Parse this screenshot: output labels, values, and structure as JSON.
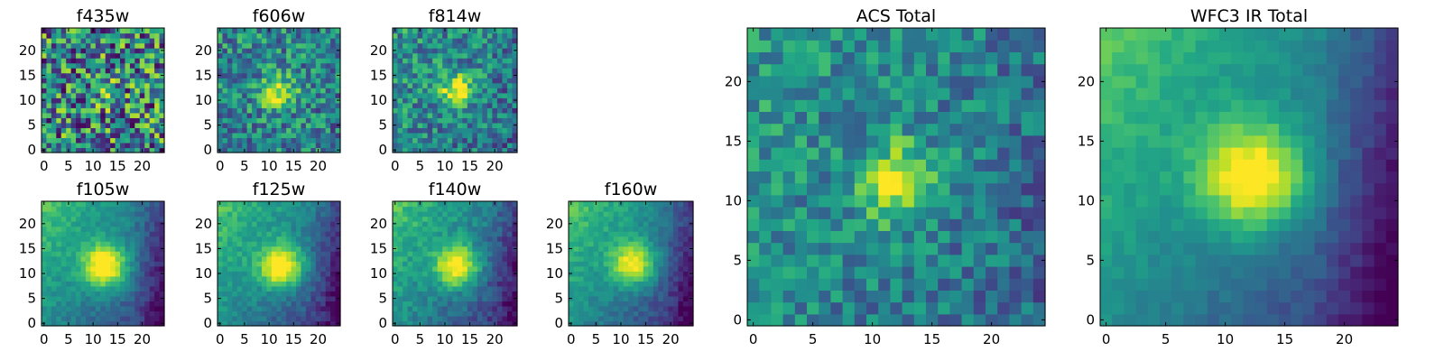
{
  "chart_data": [
    {
      "type": "heatmap",
      "title": "f435w",
      "xticks": [
        0,
        5,
        10,
        15,
        20
      ],
      "yticks": [
        0,
        5,
        10,
        15,
        20
      ],
      "xlim": [
        -0.5,
        24.5
      ],
      "ylim": [
        -0.5,
        24.5
      ],
      "grid": false,
      "colormap": "viridis",
      "source": {
        "center": [
          12,
          12
        ],
        "amplitude": 0.1,
        "sigma": 3
      },
      "background_gradient": 0.0,
      "noise": 0.9
    },
    {
      "type": "heatmap",
      "title": "f606w",
      "xticks": [
        0,
        5,
        10,
        15,
        20
      ],
      "yticks": [
        0,
        5,
        10,
        15,
        20
      ],
      "xlim": [
        -0.5,
        24.5
      ],
      "ylim": [
        -0.5,
        24.5
      ],
      "grid": false,
      "colormap": "viridis",
      "source": {
        "center": [
          12,
          11.5
        ],
        "amplitude": 0.55,
        "sigma": 2.3
      },
      "background_gradient": 0.05,
      "noise": 0.55
    },
    {
      "type": "heatmap",
      "title": "f814w",
      "xticks": [
        0,
        5,
        10,
        15,
        20
      ],
      "yticks": [
        0,
        5,
        10,
        15,
        20
      ],
      "xlim": [
        -0.5,
        24.5
      ],
      "ylim": [
        -0.5,
        24.5
      ],
      "grid": false,
      "colormap": "viridis",
      "source": {
        "center": [
          12.5,
          12
        ],
        "amplitude": 0.6,
        "sigma": 2.3
      },
      "background_gradient": 0.15,
      "noise": 0.5
    },
    {
      "type": "heatmap",
      "title": "f105w",
      "xticks": [
        0,
        5,
        10,
        15,
        20
      ],
      "yticks": [
        0,
        5,
        10,
        15,
        20
      ],
      "xlim": [
        -0.5,
        24.5
      ],
      "ylim": [
        -0.5,
        24.5
      ],
      "grid": false,
      "colormap": "viridis",
      "source": {
        "center": [
          12.5,
          11.5
        ],
        "amplitude": 0.7,
        "sigma": 3.2
      },
      "background_gradient": 0.65,
      "noise": 0.15
    },
    {
      "type": "heatmap",
      "title": "f125w",
      "xticks": [
        0,
        5,
        10,
        15,
        20
      ],
      "yticks": [
        0,
        5,
        10,
        15,
        20
      ],
      "xlim": [
        -0.5,
        24.5
      ],
      "ylim": [
        -0.5,
        24.5
      ],
      "grid": false,
      "colormap": "viridis",
      "source": {
        "center": [
          12.5,
          11.5
        ],
        "amplitude": 0.7,
        "sigma": 3.1
      },
      "background_gradient": 0.65,
      "noise": 0.17
    },
    {
      "type": "heatmap",
      "title": "f140w",
      "xticks": [
        0,
        5,
        10,
        15,
        20
      ],
      "yticks": [
        0,
        5,
        10,
        15,
        20
      ],
      "xlim": [
        -0.5,
        24.5
      ],
      "ylim": [
        -0.5,
        24.5
      ],
      "grid": false,
      "colormap": "viridis",
      "source": {
        "center": [
          12.5,
          11.5
        ],
        "amplitude": 0.65,
        "sigma": 3.0
      },
      "background_gradient": 0.65,
      "noise": 0.2
    },
    {
      "type": "heatmap",
      "title": "f160w",
      "xticks": [
        0,
        5,
        10,
        15,
        20
      ],
      "yticks": [
        0,
        5,
        10,
        15,
        20
      ],
      "xlim": [
        -0.5,
        24.5
      ],
      "ylim": [
        -0.5,
        24.5
      ],
      "grid": false,
      "colormap": "viridis",
      "source": {
        "center": [
          12.5,
          12
        ],
        "amplitude": 0.6,
        "sigma": 3.0
      },
      "background_gradient": 0.7,
      "noise": 0.15
    },
    {
      "type": "heatmap",
      "title": "ACS Total",
      "xticks": [
        0,
        5,
        10,
        15,
        20
      ],
      "yticks": [
        0,
        5,
        10,
        15,
        20
      ],
      "xlim": [
        -0.5,
        24.5
      ],
      "ylim": [
        -0.5,
        24.5
      ],
      "grid": false,
      "colormap": "viridis",
      "source": {
        "center": [
          12.5,
          11.5
        ],
        "amplitude": 0.6,
        "sigma": 2.2
      },
      "background_gradient": 0.2,
      "noise": 0.4
    },
    {
      "type": "heatmap",
      "title": "WFC3 IR Total",
      "xticks": [
        0,
        5,
        10,
        15,
        20
      ],
      "yticks": [
        0,
        5,
        10,
        15,
        20
      ],
      "xlim": [
        -0.5,
        24.5
      ],
      "ylim": [
        -0.5,
        24.5
      ],
      "grid": false,
      "colormap": "viridis",
      "source": {
        "center": [
          12.5,
          12
        ],
        "amplitude": 0.65,
        "sigma": 3.2
      },
      "background_gradient": 0.7,
      "noise": 0.1
    }
  ]
}
